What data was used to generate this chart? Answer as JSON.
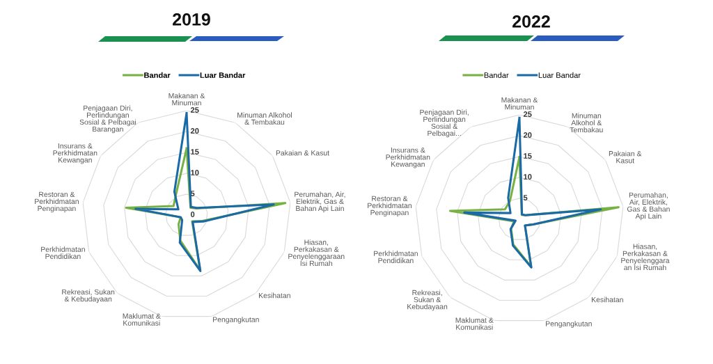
{
  "chart_data": [
    {
      "type": "radar",
      "title": "2019",
      "categories": [
        "Makanan &\nMinuman",
        "Minuman Alkohol\n& Tembakau",
        "Pakaian & Kasut",
        "Perumahan, Air,\nElektrik, Gas &\nBahan Api Lain",
        "Hiasan,\nPerkakasan &\nPenyelenggaraan\nIsi Rumah",
        "Kesihatan",
        "Pengangkutan",
        "Maklumat &\nKomunikasi",
        "Rekreasi, Sukan\n& Kebudayaan",
        "Perkhidmatan\nPendidikan",
        "Restoran &\nPerkhidmatan\nPenginapan",
        "Insurans &\nPerkhidmatan\nKewangan",
        "Penjagaan Diri,\nPerlindungan\nSosial & Pelbagai\nBarangan"
      ],
      "series": [
        {
          "name": "Bandar",
          "color": "#77b144",
          "values": [
            16.0,
            2.0,
            2.8,
            23.8,
            4.0,
            2.0,
            13.6,
            6.3,
            2.9,
            1.5,
            14.6,
            3.8,
            5.5
          ]
        },
        {
          "name": "Luar Bandar",
          "color": "#1b6aa5",
          "values": [
            24.4,
            2.2,
            3.0,
            21.0,
            4.3,
            2.2,
            13.8,
            6.8,
            1.6,
            1.5,
            12.3,
            2.4,
            6.3
          ]
        }
      ],
      "ylim": [
        0,
        25
      ],
      "yticks": [
        0,
        5,
        10,
        15,
        20,
        25
      ],
      "grid": true,
      "legend": "top"
    },
    {
      "type": "radar",
      "title": "2022",
      "categories": [
        "Makanan &\nMinuman",
        "Minuman\nAlkohol &\nTembakau",
        "Pakaian &\nKasut",
        "Perumahan,\nAir, Elektrik,\nGas & Bahan\nApi Lain",
        "Hiasan,\nPerkakasan &\nPenyelenggara\nan Isi Rumah",
        "Kesihatan",
        "Pengangkutan",
        "Maklumat &\nKomunikasi",
        "Rekreasi,\nSukan &\nKebudayaan",
        "Perkhidmatan\nPendidikan",
        "Restoran &\nPerkhidmatan\nPenginapan",
        "Insurans &\nPerkhidmatan\nKewangan",
        "Penjagaan Diri,\nPerlindungan\nSosial &\nPelbagai..."
      ],
      "series": [
        {
          "name": "Bandar",
          "color": "#77b144",
          "values": [
            14.9,
            1.2,
            1.7,
            23.9,
            3.5,
            2.0,
            11.7,
            6.2,
            3.0,
            1.4,
            16.7,
            4.2,
            4.9
          ]
        },
        {
          "name": "Luar Bandar",
          "color": "#1b6aa5",
          "values": [
            24.3,
            1.3,
            1.7,
            19.6,
            3.5,
            2.0,
            11.9,
            6.5,
            3.2,
            1.0,
            13.3,
            2.6,
            5.8
          ]
        }
      ],
      "ylim": [
        0,
        25
      ],
      "yticks": [
        5,
        10,
        15,
        20,
        25
      ],
      "grid": true,
      "legend": "top"
    }
  ]
}
